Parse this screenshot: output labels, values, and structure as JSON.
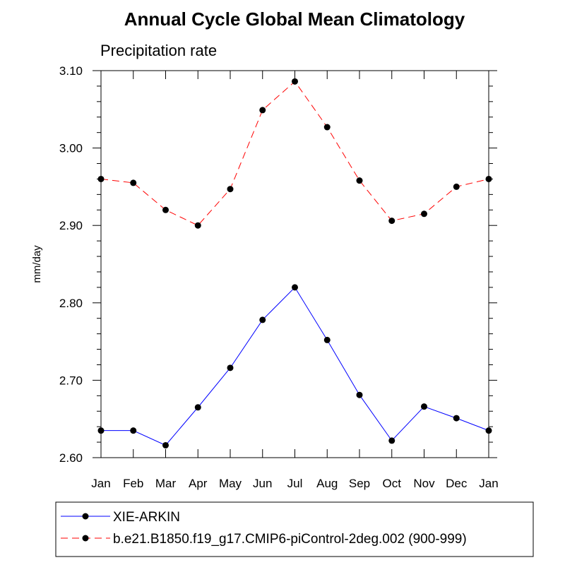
{
  "chart_data": {
    "type": "line",
    "title": "Annual Cycle Global Mean Climatology",
    "subtitle": "Precipitation rate",
    "ylabel": "mm/day",
    "xlabel": "",
    "categories": [
      "Jan",
      "Feb",
      "Mar",
      "Apr",
      "May",
      "Jun",
      "Jul",
      "Aug",
      "Sep",
      "Oct",
      "Nov",
      "Dec",
      "Jan"
    ],
    "ylim": [
      2.6,
      3.1
    ],
    "yticks": [
      2.6,
      2.7,
      2.8,
      2.9,
      3.0,
      3.1
    ],
    "ytick_labels": [
      "2.60",
      "2.70",
      "2.80",
      "2.90",
      "3.00",
      "3.10"
    ],
    "legend_position": "bottom",
    "series": [
      {
        "name": "XIE-ARKIN",
        "color": "#0000ff",
        "line_style": "solid",
        "marker": "filled-circle",
        "values": [
          2.635,
          2.635,
          2.616,
          2.665,
          2.716,
          2.778,
          2.82,
          2.752,
          2.681,
          2.622,
          2.666,
          2.651,
          2.635
        ]
      },
      {
        "name": "b.e21.B1850.f19_g17.CMIP6-piControl-2deg.002 (900-999)",
        "color": "#ff0000",
        "line_style": "dashed",
        "marker": "filled-circle",
        "values": [
          2.96,
          2.955,
          2.92,
          2.9,
          2.947,
          3.049,
          3.086,
          3.027,
          2.958,
          2.906,
          2.915,
          2.95,
          2.96
        ]
      }
    ]
  }
}
